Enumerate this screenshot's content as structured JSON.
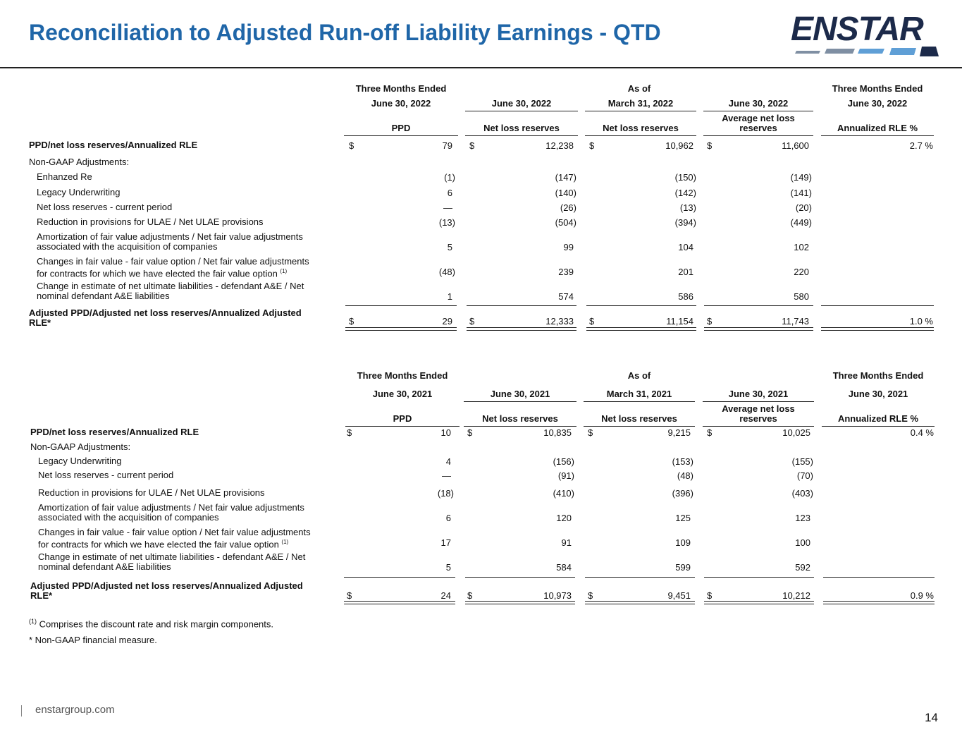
{
  "title": "Reconciliation to Adjusted Run-off Liability Earnings - QTD",
  "logo": {
    "text": "ENSTAR",
    "colors": {
      "text": "#1c2a4a",
      "stripe1": "#7f8fa3",
      "stripe2": "#5f9fd6",
      "stripe3": "#1f66a8"
    }
  },
  "colors": {
    "title": "#1f66a8"
  },
  "table1": {
    "header": {
      "group1_line1": "Three Months Ended",
      "group1_line2": "June 30, 2022",
      "asof": "As of",
      "c2_date": "June 30, 2022",
      "c3_date": "March 31, 2022",
      "c4_date": "June 30, 2022",
      "group5_line1": "Three Months Ended",
      "group5_line2": "June 30, 2022",
      "c1_sub": "PPD",
      "c2_sub": "Net loss reserves",
      "c3_sub": "Net loss reserves",
      "c4_sub_line1": "Average net loss",
      "c4_sub_line2": "reserves",
      "c5_sub": "Annualized RLE %"
    },
    "first_row": {
      "label": "PPD/net loss reserves/Annualized RLE",
      "c1": "79",
      "c2": "12,238",
      "c3": "10,962",
      "c4": "11,600",
      "c5": "2.7 %"
    },
    "section_label": "Non-GAAP Adjustments:",
    "rows": [
      {
        "label1": "Enhanzed Re",
        "label2": "",
        "c1": "(1)",
        "c2": "(147)",
        "c3": "(150)",
        "c4": "(149)"
      },
      {
        "label1": "Legacy Underwriting",
        "label2": "",
        "c1": "6",
        "c2": "(140)",
        "c3": "(142)",
        "c4": "(141)"
      },
      {
        "label1": "Net loss reserves - current period",
        "label2": "",
        "c1": "—",
        "c2": "(26)",
        "c3": "(13)",
        "c4": "(20)"
      },
      {
        "label1": "Reduction in provisions for ULAE / Net ULAE provisions",
        "label2": "",
        "c1": "(13)",
        "c2": "(504)",
        "c3": "(394)",
        "c4": "(449)"
      },
      {
        "label1": "Amortization of fair value adjustments / Net fair value adjustments",
        "label2": "associated with the acquisition of companies",
        "c1": "5",
        "c2": "99",
        "c3": "104",
        "c4": "102"
      },
      {
        "label1": "Changes in fair value - fair value option / Net fair value adjustments",
        "label2": "for contracts for which we have elected the fair value option",
        "sup": "(1)",
        "c1": "(48)",
        "c2": "239",
        "c3": "201",
        "c4": "220"
      },
      {
        "label1": "Change in estimate of net ultimate liabilities - defendant A&E / Net",
        "label2": "nominal defendant A&E liabilities",
        "c1": "1",
        "c2": "574",
        "c3": "586",
        "c4": "580"
      }
    ],
    "total": {
      "label1": "Adjusted PPD/Adjusted net loss reserves/Annualized Adjusted",
      "label2": "RLE*",
      "c1": "29",
      "c2": "12,333",
      "c3": "11,154",
      "c4": "11,743",
      "c5": "1.0 %"
    },
    "dollar": "$"
  },
  "table2": {
    "header": {
      "group1_line1": "Three Months Ended",
      "group1_line2": "June 30, 2021",
      "asof": "As of",
      "c2_date": "June 30, 2021",
      "c3_date": "March 31, 2021",
      "c4_date": "June 30, 2021",
      "group5_line1": "Three Months Ended",
      "group5_line2": "June 30, 2021",
      "c1_sub": "PPD",
      "c2_sub": "Net loss reserves",
      "c3_sub": "Net loss reserves",
      "c4_sub_line1": "Average net loss",
      "c4_sub_line2": "reserves",
      "c5_sub": "Annualized RLE %"
    },
    "first_row": {
      "label": "PPD/net loss reserves/Annualized RLE",
      "c1": "10",
      "c2": "10,835",
      "c3": "9,215",
      "c4": "10,025",
      "c5": "0.4 %"
    },
    "section_label": "Non-GAAP Adjustments:",
    "rows": [
      {
        "label1": "Legacy Underwriting",
        "label2": "",
        "c1": "4",
        "c2": "(156)",
        "c3": "(153)",
        "c4": "(155)"
      },
      {
        "label1": "Net loss reserves - current period",
        "label2": "",
        "c1": "—",
        "c2": "(91)",
        "c3": "(48)",
        "c4": "(70)"
      },
      {
        "label1": "Reduction in provisions for ULAE / Net ULAE provisions",
        "label2": "",
        "c1": "(18)",
        "c2": "(410)",
        "c3": "(396)",
        "c4": "(403)"
      },
      {
        "label1": "Amortization of fair value adjustments / Net fair value adjustments",
        "label2": "associated with the acquisition of companies",
        "c1": "6",
        "c2": "120",
        "c3": "125",
        "c4": "123"
      },
      {
        "label1": "Changes in fair value - fair value option / Net fair value adjustments",
        "label2": "for contracts for which we have elected the fair value option",
        "sup": "(1)",
        "c1": "17",
        "c2": "91",
        "c3": "109",
        "c4": "100"
      },
      {
        "label1": "Change in estimate of net ultimate liabilities - defendant A&E / Net",
        "label2": "nominal defendant A&E liabilities",
        "c1": "5",
        "c2": "584",
        "c3": "599",
        "c4": "592"
      }
    ],
    "total": {
      "label1": "Adjusted PPD/Adjusted net loss reserves/Annualized Adjusted",
      "label2": "RLE*",
      "c1": "24",
      "c2": "10,973",
      "c3": "9,451",
      "c4": "10,212",
      "c5": "0.9 %"
    },
    "dollar": "$"
  },
  "footnotes": {
    "fn1_marker": "(1)",
    "fn1_text": "Comprises the discount rate and risk margin components.",
    "fn2": "* Non-GAAP financial measure."
  },
  "footer": {
    "url": "enstargroup.com",
    "page": "14"
  }
}
